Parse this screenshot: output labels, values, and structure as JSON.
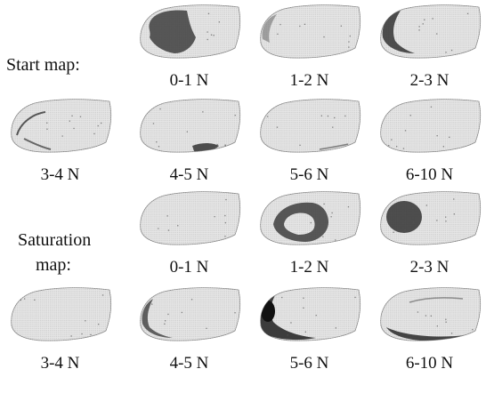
{
  "labels": {
    "start_map": "Start map:",
    "saturation_map_line1": "Saturation",
    "saturation_map_line2": "map:"
  },
  "groups": [
    {
      "name": "start-map",
      "panels": [
        {
          "caption": "0-1 N",
          "pattern": "big-upper-left"
        },
        {
          "caption": "1-2 N",
          "pattern": "left-edge-light"
        },
        {
          "caption": "2-3 N",
          "pattern": "left-crescent"
        },
        {
          "caption": "3-4 N",
          "pattern": "arc-left"
        },
        {
          "caption": "4-5 N",
          "pattern": "bottom-center"
        },
        {
          "caption": "5-6 N",
          "pattern": "bottom-right-faint"
        },
        {
          "caption": "6-10 N",
          "pattern": "none"
        }
      ]
    },
    {
      "name": "saturation-map",
      "panels": [
        {
          "caption": "0-1 N",
          "pattern": "none"
        },
        {
          "caption": "1-2 N",
          "pattern": "ring-center"
        },
        {
          "caption": "2-3 N",
          "pattern": "oval-left"
        },
        {
          "caption": "3-4 N",
          "pattern": "faint-specks"
        },
        {
          "caption": "4-5 N",
          "pattern": "left-bottom-edge"
        },
        {
          "caption": "5-6 N",
          "pattern": "heavy-left-bottom"
        },
        {
          "caption": "6-10 N",
          "pattern": "bottom-band"
        }
      ]
    }
  ],
  "colors": {
    "surface_light": "#e6e6e6",
    "surface_grid": "#c4c4c4",
    "outline": "#9a9a9a",
    "dark": "#333333"
  }
}
